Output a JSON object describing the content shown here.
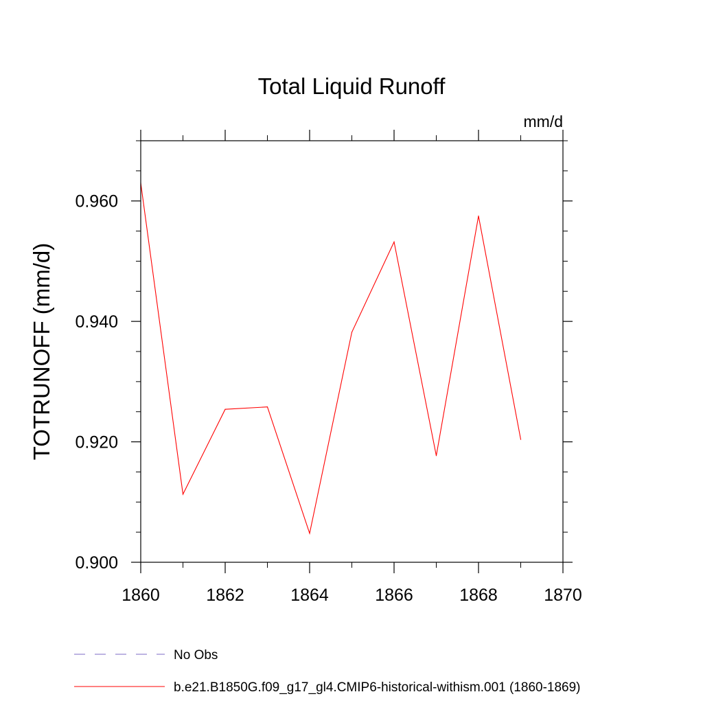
{
  "chart_data": {
    "type": "line",
    "title": "Total Liquid Runoff",
    "units_label": "mm/d",
    "ylabel": "TOTRUNOFF  (mm/d)",
    "xlabel": "",
    "xlim": [
      1860,
      1870
    ],
    "ylim": [
      0.9,
      0.97
    ],
    "x_ticks": [
      1860,
      1862,
      1864,
      1866,
      1868,
      1870
    ],
    "x_tick_labels": [
      "1860",
      "1862",
      "1864",
      "1866",
      "1868",
      "1870"
    ],
    "y_ticks": [
      0.9,
      0.92,
      0.94,
      0.96
    ],
    "y_tick_labels": [
      "0.900",
      "0.920",
      "0.940",
      "0.960"
    ],
    "y_minor_step": 0.005,
    "x_minor_step": 1,
    "grid": false,
    "legend_position": "bottom-left",
    "series": [
      {
        "name": "b.e21.B1850G.f09_g17_gl4.CMIP6-historical-withism.001 (1860-1869)",
        "color": "#ff0000",
        "style": "solid",
        "x": [
          1860,
          1861,
          1862,
          1863,
          1864,
          1865,
          1866,
          1867,
          1868,
          1869
        ],
        "y": [
          0.963,
          0.9113,
          0.9254,
          0.9258,
          0.9048,
          0.9382,
          0.9532,
          0.9177,
          0.9575,
          0.9204
        ]
      }
    ],
    "legend": [
      {
        "label": "No Obs",
        "color": "#7b68c4",
        "style": "dashed"
      },
      {
        "label": "b.e21.B1850G.f09_g17_gl4.CMIP6-historical-withism.001 (1860-1869)",
        "color": "#ff0000",
        "style": "solid"
      }
    ]
  }
}
